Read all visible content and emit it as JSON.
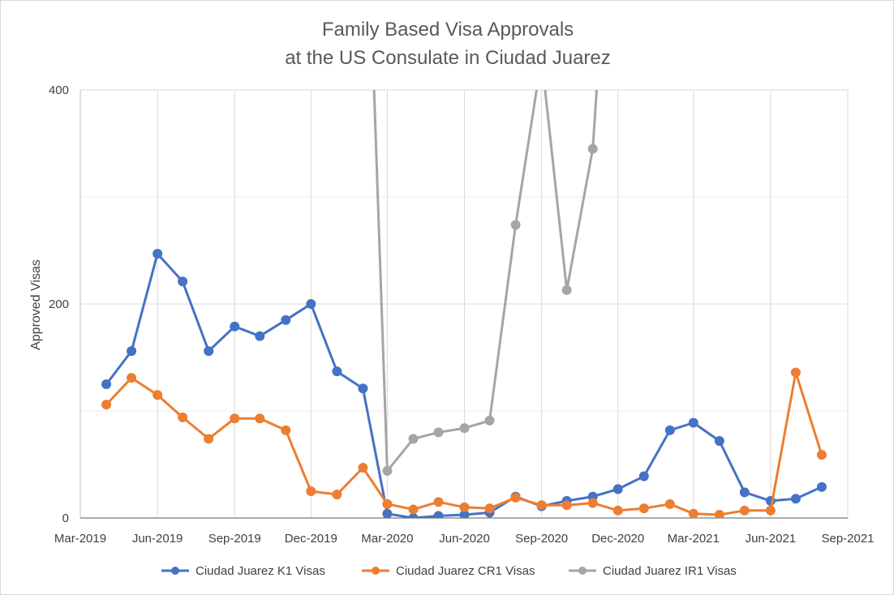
{
  "chart_data": {
    "type": "line",
    "title": "Family Based Visa Approvals",
    "subtitle": "at the US Consulate in Ciudad Juarez",
    "xlabel": "",
    "ylabel": "Approved Visas",
    "xlim": [
      "2019-03-01",
      "2021-09-01"
    ],
    "ylim": [
      0,
      400
    ],
    "x_ticks": [
      "Mar-2019",
      "Jun-2019",
      "Sep-2019",
      "Dec-2019",
      "Mar-2020",
      "Jun-2020",
      "Sep-2020",
      "Dec-2020",
      "Mar-2021",
      "Jun-2021",
      "Sep-2021"
    ],
    "x_tick_dates": [
      "2019-03-01",
      "2019-06-01",
      "2019-09-01",
      "2019-12-01",
      "2020-03-01",
      "2020-06-01",
      "2020-09-01",
      "2020-12-01",
      "2021-03-01",
      "2021-06-01",
      "2021-09-01"
    ],
    "y_ticks": [
      0,
      200,
      400
    ],
    "grid": "on",
    "legend_position": "bottom",
    "series": [
      {
        "name": "Ciudad Juarez K1 Visas",
        "color": "#4472C4",
        "points": [
          [
            "2019-04-01",
            125
          ],
          [
            "2019-05-01",
            156
          ],
          [
            "2019-06-01",
            247
          ],
          [
            "2019-07-01",
            221
          ],
          [
            "2019-08-01",
            156
          ],
          [
            "2019-09-01",
            179
          ],
          [
            "2019-10-01",
            170
          ],
          [
            "2019-11-01",
            185
          ],
          [
            "2019-12-01",
            200
          ],
          [
            "2020-01-01",
            137
          ],
          [
            "2020-02-01",
            121
          ],
          [
            "2020-03-01",
            4
          ],
          [
            "2020-04-01",
            0
          ],
          [
            "2020-05-01",
            2
          ],
          [
            "2020-06-01",
            3
          ],
          [
            "2020-07-01",
            5
          ],
          [
            "2020-08-01",
            20
          ],
          [
            "2020-09-01",
            11
          ],
          [
            "2020-10-01",
            16
          ],
          [
            "2020-11-01",
            20
          ],
          [
            "2020-12-01",
            27
          ],
          [
            "2021-01-01",
            39
          ],
          [
            "2021-02-01",
            82
          ],
          [
            "2021-03-01",
            89
          ],
          [
            "2021-04-01",
            72
          ],
          [
            "2021-05-01",
            24
          ],
          [
            "2021-06-01",
            16
          ],
          [
            "2021-07-01",
            18
          ],
          [
            "2021-08-01",
            29
          ]
        ]
      },
      {
        "name": "Ciudad Juarez CR1 Visas",
        "color": "#ED7D31",
        "points": [
          [
            "2019-04-01",
            106
          ],
          [
            "2019-05-01",
            131
          ],
          [
            "2019-06-01",
            115
          ],
          [
            "2019-07-01",
            94
          ],
          [
            "2019-08-01",
            74
          ],
          [
            "2019-09-01",
            93
          ],
          [
            "2019-10-01",
            93
          ],
          [
            "2019-11-01",
            82
          ],
          [
            "2019-12-01",
            25
          ],
          [
            "2020-01-01",
            22
          ],
          [
            "2020-02-01",
            47
          ],
          [
            "2020-03-01",
            13
          ],
          [
            "2020-04-01",
            8
          ],
          [
            "2020-05-01",
            15
          ],
          [
            "2020-06-01",
            10
          ],
          [
            "2020-07-01",
            9
          ],
          [
            "2020-08-01",
            19
          ],
          [
            "2020-09-01",
            12
          ],
          [
            "2020-10-01",
            12
          ],
          [
            "2020-11-01",
            14
          ],
          [
            "2020-12-01",
            7
          ],
          [
            "2021-01-01",
            9
          ],
          [
            "2021-02-01",
            13
          ],
          [
            "2021-03-01",
            4
          ],
          [
            "2021-04-01",
            3
          ],
          [
            "2021-05-01",
            7
          ],
          [
            "2021-06-01",
            7
          ],
          [
            "2021-07-01",
            136
          ],
          [
            "2021-08-01",
            59
          ]
        ]
      },
      {
        "name": "Ciudad Juarez IR1 Visas",
        "color": "#A5A5A5",
        "points": [
          [
            "2020-02-01",
            700
          ],
          [
            "2020-03-01",
            44
          ],
          [
            "2020-04-01",
            74
          ],
          [
            "2020-05-01",
            80
          ],
          [
            "2020-06-01",
            84
          ],
          [
            "2020-07-01",
            91
          ],
          [
            "2020-08-01",
            274
          ],
          [
            "2020-09-01",
            430
          ],
          [
            "2020-10-01",
            213
          ],
          [
            "2020-11-01",
            345
          ],
          [
            "2020-12-01",
            700
          ]
        ]
      }
    ]
  }
}
